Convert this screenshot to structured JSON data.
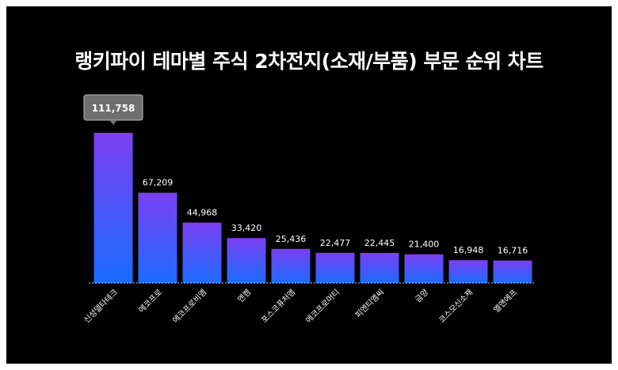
{
  "title": "랭키파이 테마별 주식 2차전지(소재/부품) 부문 순위 차트",
  "colors": {
    "background": "#000000",
    "bar_top": "#7b3ff2",
    "bar_bottom": "#1a6cff",
    "text": "#ffffff",
    "tooltip": "#6e6e6e"
  },
  "chart_data": {
    "type": "bar",
    "title": "랭키파이 테마별 주식 2차전지(소재/부품) 부문 순위 차트",
    "xlabel": "",
    "ylabel": "",
    "ylim": [
      0,
      120000
    ],
    "grid": false,
    "categories": [
      "신성델타테크",
      "에코프로",
      "에코프로비엠",
      "엔켐",
      "포스코퓨처엠",
      "에코프로머티",
      "피엔티엠씨",
      "금양",
      "코스모신소재",
      "엘앤에프"
    ],
    "values": [
      111758,
      67209,
      44968,
      33420,
      25436,
      22477,
      22445,
      21400,
      16948,
      16716
    ],
    "value_labels": [
      "111,758",
      "67,209",
      "44,968",
      "33,420",
      "25,436",
      "22,477",
      "22,445",
      "21,400",
      "16,948",
      "16,716"
    ],
    "highlight": {
      "index": 0,
      "label": "111,758"
    }
  }
}
